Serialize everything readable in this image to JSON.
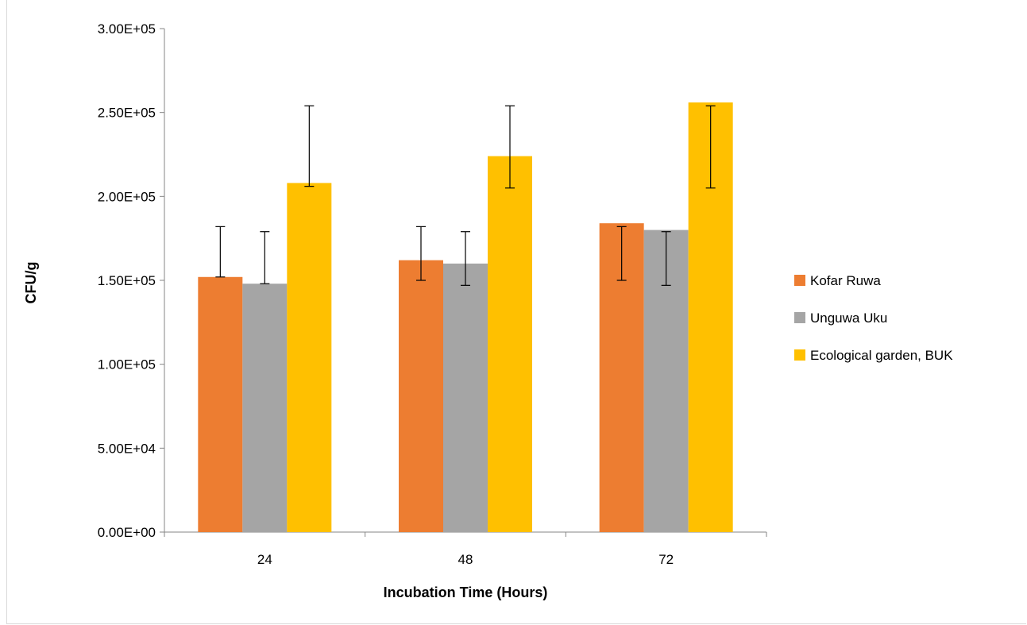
{
  "chart_data": {
    "type": "bar",
    "title": "",
    "xlabel": "Incubation Time (Hours)",
    "ylabel": "CFU/g",
    "categories": [
      "24",
      "48",
      "72"
    ],
    "ylim": [
      0,
      300000
    ],
    "yticks": [
      0,
      50000,
      100000,
      150000,
      200000,
      250000,
      300000
    ],
    "ytick_labels": [
      "0.00E+00",
      "5.00E+04",
      "1.00E+05",
      "1.50E+05",
      "2.00E+05",
      "2.50E+05",
      "3.00E+05"
    ],
    "grid": false,
    "legend_position": "right",
    "series": [
      {
        "name": "Kofar Ruwa",
        "color": "#ED7D31",
        "values": [
          152000,
          162000,
          184000
        ],
        "error_low": [
          152000,
          150000,
          150000
        ],
        "error_high": [
          182000,
          182000,
          182000
        ]
      },
      {
        "name": "Unguwa Uku",
        "color": "#A5A5A5",
        "values": [
          148000,
          160000,
          180000
        ],
        "error_low": [
          148000,
          147000,
          147000
        ],
        "error_high": [
          179000,
          179000,
          179000
        ]
      },
      {
        "name": "Ecological garden, BUK",
        "color": "#FFC000",
        "values": [
          208000,
          224000,
          256000
        ],
        "error_low": [
          206000,
          205000,
          205000
        ],
        "error_high": [
          254000,
          254000,
          254000
        ]
      }
    ]
  }
}
